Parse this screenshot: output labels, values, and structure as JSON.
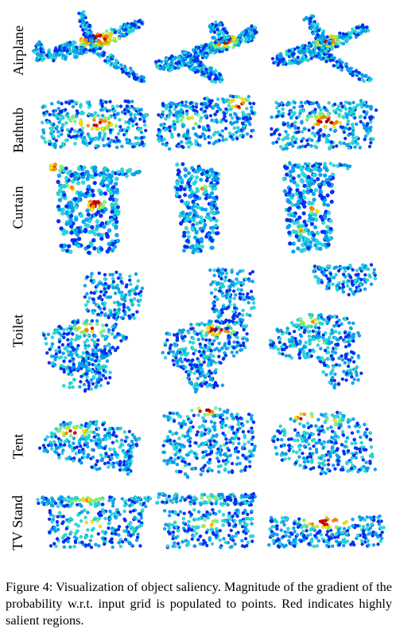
{
  "figure": {
    "rows": [
      {
        "id": "airplane",
        "label": "Airplane"
      },
      {
        "id": "bathtub",
        "label": "Bathtub"
      },
      {
        "id": "curtain",
        "label": "Curtain"
      },
      {
        "id": "toilet",
        "label": "Toilet"
      },
      {
        "id": "tent",
        "label": "Tent"
      },
      {
        "id": "tv-stand",
        "label": "TV Stand"
      }
    ],
    "colormap": [
      "#00008b",
      "#0030ff",
      "#00a6ff",
      "#20e0e0",
      "#7cfc7c",
      "#f5e800",
      "#ff8c00",
      "#d40000",
      "#7a0000"
    ]
  },
  "caption": {
    "text": "Figure 4: Visualization of object saliency. Magnitude of the gradient of the probability w.r.t. input grid is populated to points. Red indicates highly salient regions."
  }
}
